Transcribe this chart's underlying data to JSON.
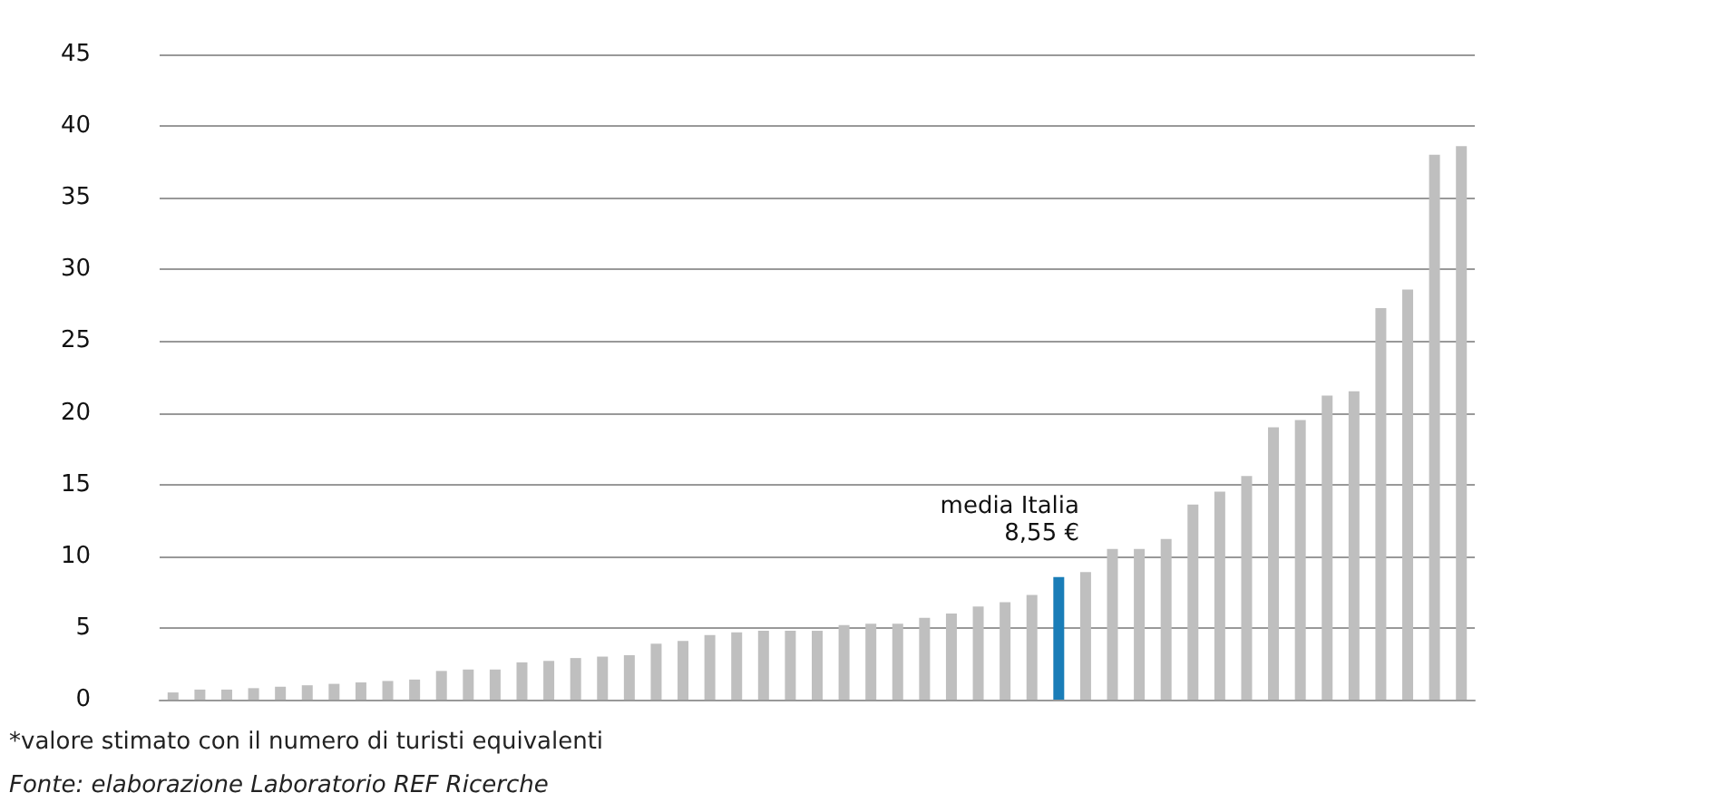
{
  "chart_data": {
    "type": "bar",
    "categories": [
      null,
      null,
      null,
      null,
      null,
      null,
      null,
      null,
      null,
      null,
      null,
      null,
      null,
      null,
      null,
      null,
      null,
      null,
      null,
      null,
      null,
      null,
      null,
      null,
      null,
      null,
      null,
      null,
      null,
      null,
      null,
      null,
      null,
      null,
      null,
      null,
      null,
      null,
      null,
      null,
      null,
      null,
      null,
      null,
      null,
      null,
      null,
      null,
      null
    ],
    "values": [
      0.5,
      0.7,
      0.7,
      0.8,
      0.9,
      1.0,
      1.1,
      1.2,
      1.3,
      1.4,
      2.0,
      2.1,
      2.1,
      2.6,
      2.7,
      2.9,
      3.0,
      3.1,
      3.9,
      4.1,
      4.5,
      4.7,
      4.8,
      4.8,
      4.8,
      5.2,
      5.3,
      5.3,
      5.7,
      6.0,
      6.5,
      6.8,
      7.3,
      8.55,
      8.9,
      10.5,
      10.5,
      11.2,
      13.6,
      14.5,
      15.6,
      19.0,
      19.5,
      21.2,
      21.5,
      27.3,
      28.6,
      38.0,
      38.6
    ],
    "colors": [
      "#bfbfbf",
      "#bfbfbf",
      "#bfbfbf",
      "#bfbfbf",
      "#bfbfbf",
      "#bfbfbf",
      "#bfbfbf",
      "#bfbfbf",
      "#bfbfbf",
      "#bfbfbf",
      "#bfbfbf",
      "#bfbfbf",
      "#bfbfbf",
      "#bfbfbf",
      "#bfbfbf",
      "#bfbfbf",
      "#bfbfbf",
      "#bfbfbf",
      "#bfbfbf",
      "#bfbfbf",
      "#bfbfbf",
      "#bfbfbf",
      "#bfbfbf",
      "#bfbfbf",
      "#bfbfbf",
      "#bfbfbf",
      "#bfbfbf",
      "#bfbfbf",
      "#bfbfbf",
      "#bfbfbf",
      "#bfbfbf",
      "#bfbfbf",
      "#bfbfbf",
      "#1a7db8",
      "#bfbfbf",
      "#bfbfbf",
      "#bfbfbf",
      "#bfbfbf",
      "#bfbfbf",
      "#bfbfbf",
      "#bfbfbf",
      "#bfbfbf",
      "#bfbfbf",
      "#bfbfbf",
      "#bfbfbf",
      "#bfbfbf",
      "#bfbfbf",
      "#bfbfbf",
      "#bfbfbf"
    ],
    "ylim": [
      0,
      45
    ],
    "yticks": [
      0,
      5,
      10,
      15,
      20,
      25,
      30,
      35,
      40,
      45
    ],
    "grid": true,
    "annotations": [
      "media Italia\n8,55 €",
      "*valore stimato con il numero di turisti equivalenti",
      "Fonte: elaborazione Laboratorio REF Ricerche"
    ]
  }
}
